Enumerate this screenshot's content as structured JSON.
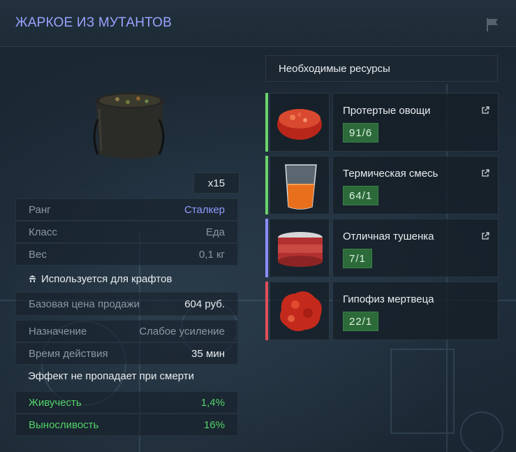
{
  "header": {
    "title": "ЖАРКОЕ ИЗ МУТАНТОВ",
    "flag_icon": "flag-icon"
  },
  "item": {
    "quantity": "x15"
  },
  "stats": {
    "rank_label": "Ранг",
    "rank_value": "Сталкер",
    "class_label": "Класс",
    "class_value": "Еда",
    "weight_label": "Вес",
    "weight_value": "0,1 кг",
    "crafting_note": "Используется для крафтов",
    "price_label": "Базовая цена продажи",
    "price_value": "604 руб.",
    "purpose_label": "Назначение",
    "purpose_value": "Слабое усиление",
    "duration_label": "Время действия",
    "duration_value": "35 мин",
    "death_note": "Эффект не пропадает при смерти",
    "vitality_label": "Живучесть",
    "vitality_value": "1,4%",
    "stamina_label": "Выносливость",
    "stamina_value": "16%"
  },
  "resources": {
    "title": "Необходимые ресурсы",
    "items": [
      {
        "name": "Протертые овощи",
        "count": "91/6",
        "color": "#6ad36b",
        "icon": "mashed-vegetables-icon"
      },
      {
        "name": "Термическая смесь",
        "count": "64/1",
        "color": "#6ad36b",
        "icon": "thermal-mix-icon"
      },
      {
        "name": "Отличная тушенка",
        "count": "7/1",
        "color": "#8c8cff",
        "icon": "stew-can-icon"
      },
      {
        "name": "Гипофиз мертвеца",
        "count": "22/1",
        "color": "#e0505a",
        "icon": "pituitary-icon"
      }
    ]
  },
  "colors": {
    "accent": "#9aa3ff",
    "positive": "#55d36a",
    "count_bg": "#2d6a3a"
  }
}
